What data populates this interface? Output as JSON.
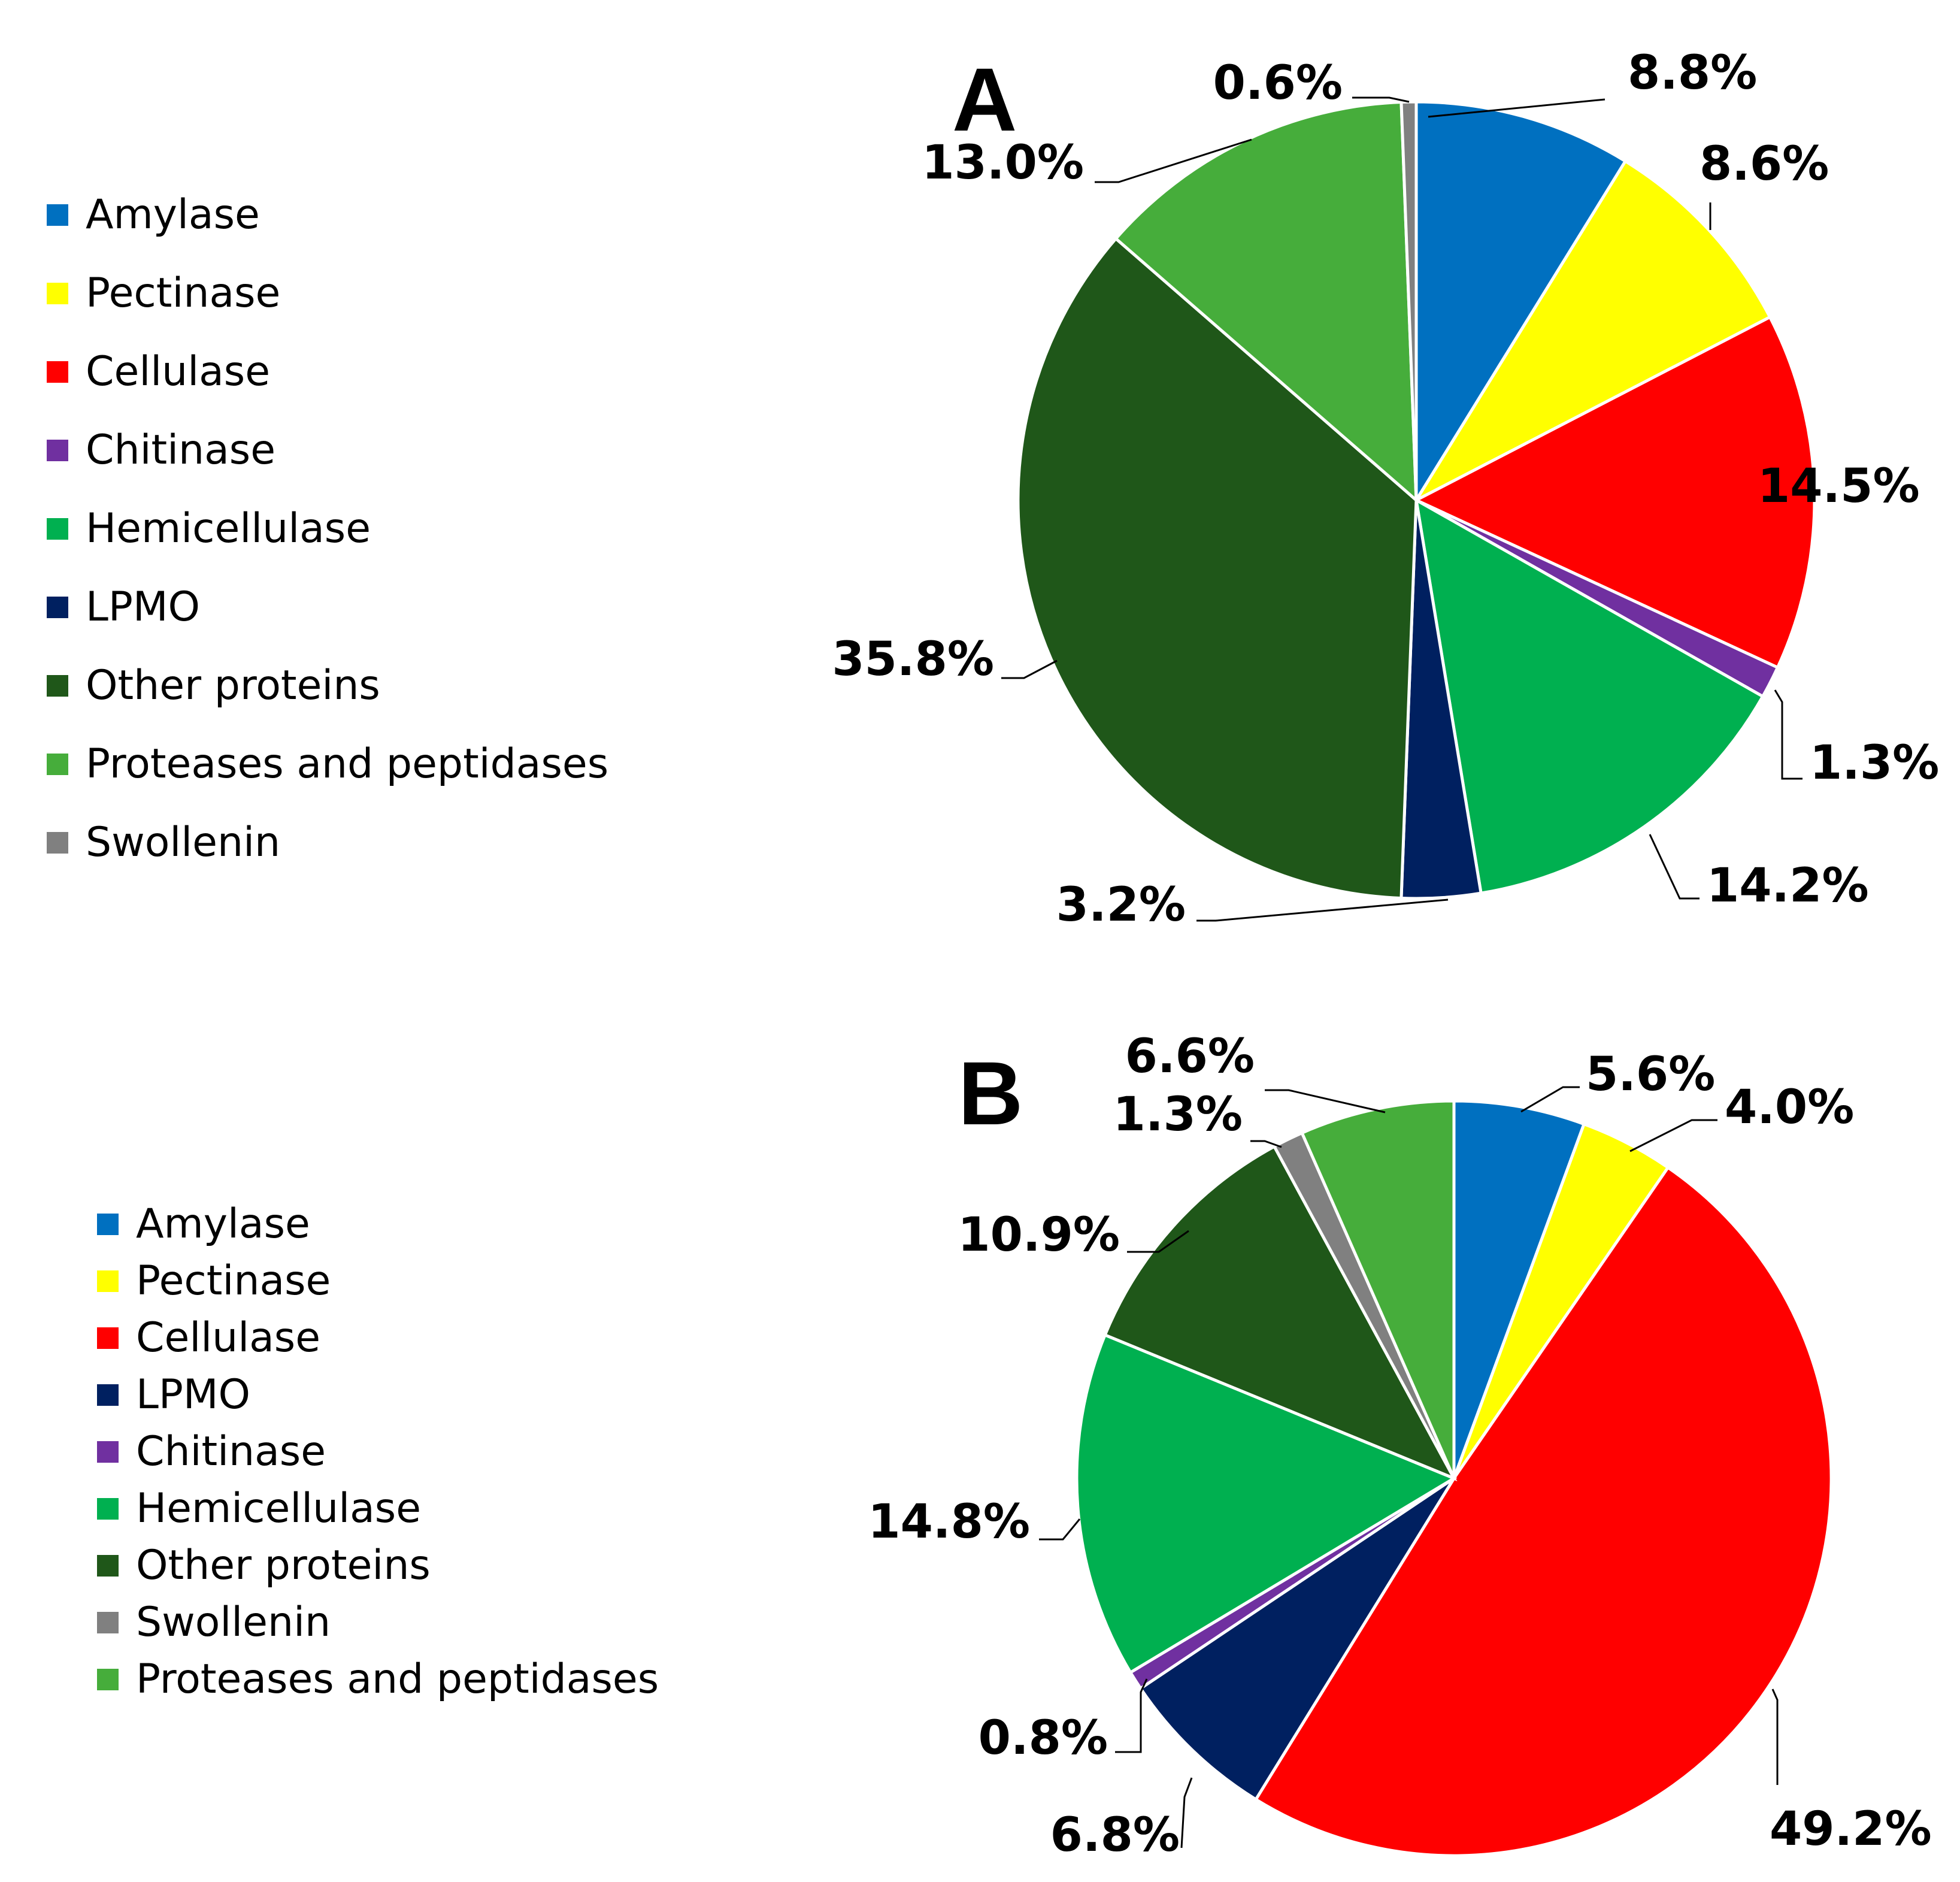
{
  "chart_data": [
    {
      "type": "pie",
      "title": "A",
      "legend_position": "left",
      "legend": [
        "Amylase",
        "Pectinase",
        "Cellulase",
        "Chitinase",
        "Hemicellulase",
        "LPMO",
        "Other proteins",
        "Proteases and peptidases",
        "Swollenin"
      ],
      "slices": [
        {
          "name": "Amylase",
          "value": 8.8,
          "label": "8.8%",
          "color": "#0070C0"
        },
        {
          "name": "Pectinase",
          "value": 8.6,
          "label": "8.6%",
          "color": "#FFFF00"
        },
        {
          "name": "Cellulase",
          "value": 14.5,
          "label": "14.5%",
          "color": "#FF0000"
        },
        {
          "name": "Chitinase",
          "value": 1.3,
          "label": "1.3%",
          "color": "#7030A0"
        },
        {
          "name": "Hemicellulase",
          "value": 14.2,
          "label": "14.2%",
          "color": "#00B050"
        },
        {
          "name": "LPMO",
          "value": 3.2,
          "label": "3.2%",
          "color": "#002060"
        },
        {
          "name": "Other proteins",
          "value": 35.8,
          "label": "35.8%",
          "color": "#1F5719"
        },
        {
          "name": "Proteases and peptidases",
          "value": 13.0,
          "label": "13.0%",
          "color": "#46AD3B"
        },
        {
          "name": "Swollenin",
          "value": 0.6,
          "label": "0.6%",
          "color": "#808080"
        }
      ]
    },
    {
      "type": "pie",
      "title": "B",
      "legend_position": "left",
      "legend": [
        "Amylase",
        "Pectinase",
        "Cellulase",
        "LPMO",
        "Chitinase",
        "Hemicellulase",
        "Other proteins",
        "Swollenin",
        "Proteases and peptidases"
      ],
      "slices": [
        {
          "name": "Amylase",
          "value": 5.6,
          "label": "5.6%",
          "color": "#0070C0"
        },
        {
          "name": "Pectinase",
          "value": 4.0,
          "label": "4.0%",
          "color": "#FFFF00"
        },
        {
          "name": "Cellulase",
          "value": 49.2,
          "label": "49.2%",
          "color": "#FF0000"
        },
        {
          "name": "LPMO",
          "value": 6.8,
          "label": "6.8%",
          "color": "#002060"
        },
        {
          "name": "Chitinase",
          "value": 0.8,
          "label": "0.8%",
          "color": "#7030A0"
        },
        {
          "name": "Hemicellulase",
          "value": 14.8,
          "label": "14.8%",
          "color": "#00B050"
        },
        {
          "name": "Other proteins",
          "value": 10.9,
          "label": "10.9%",
          "color": "#1F5719"
        },
        {
          "name": "Swollenin",
          "value": 1.3,
          "label": "1.3%",
          "color": "#808080"
        },
        {
          "name": "Proteases and peptidases",
          "value": 6.6,
          "label": "6.6%",
          "color": "#46AD3B"
        }
      ]
    }
  ]
}
